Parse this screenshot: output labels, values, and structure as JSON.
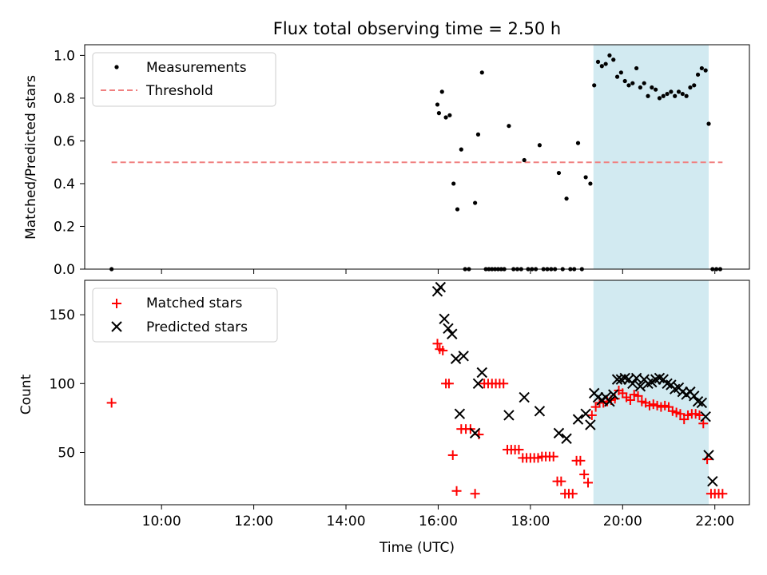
{
  "chart_data": [
    {
      "type": "scatter",
      "title": "Flux total observing time = 2.50 h",
      "xlabel": "",
      "ylabel": "Matched/Predicted stars",
      "ylim": [
        0.0,
        1.05
      ],
      "yticks": [
        "0.0",
        "0.2",
        "0.4",
        "0.6",
        "0.8",
        "1.0"
      ],
      "xlim": [
        "08:20",
        "22:45"
      ],
      "shaded_interval": [
        "19:22",
        "21:52"
      ],
      "shade_color": "#add8e6",
      "grid": false,
      "legend_position": "upper left",
      "threshold": {
        "name": "Threshold",
        "y": 0.5,
        "x_range": [
          "08:55",
          "22:10"
        ],
        "color": "#f08080",
        "style": "dashed"
      },
      "series": [
        {
          "name": "Measurements",
          "marker": "dot",
          "color": "#000000",
          "points": [
            [
              "08:55",
              0.0
            ],
            [
              "15:59",
              0.77
            ],
            [
              "16:01",
              0.73
            ],
            [
              "16:05",
              0.83
            ],
            [
              "16:10",
              0.71
            ],
            [
              "16:15",
              0.72
            ],
            [
              "16:20",
              0.4
            ],
            [
              "16:25",
              0.28
            ],
            [
              "16:30",
              0.56
            ],
            [
              "16:35",
              0.0
            ],
            [
              "16:40",
              0.0
            ],
            [
              "16:48",
              0.31
            ],
            [
              "16:52",
              0.63
            ],
            [
              "16:57",
              0.92
            ],
            [
              "17:02",
              0.0
            ],
            [
              "17:06",
              0.0
            ],
            [
              "17:10",
              0.0
            ],
            [
              "17:14",
              0.0
            ],
            [
              "17:18",
              0.0
            ],
            [
              "17:22",
              0.0
            ],
            [
              "17:26",
              0.0
            ],
            [
              "17:32",
              0.67
            ],
            [
              "17:38",
              0.0
            ],
            [
              "17:43",
              0.0
            ],
            [
              "17:48",
              0.0
            ],
            [
              "17:52",
              0.51
            ],
            [
              "17:57",
              0.0
            ],
            [
              "18:02",
              0.0
            ],
            [
              "18:07",
              0.0
            ],
            [
              "18:12",
              0.58
            ],
            [
              "18:17",
              0.0
            ],
            [
              "18:22",
              0.0
            ],
            [
              "18:27",
              0.0
            ],
            [
              "18:32",
              0.0
            ],
            [
              "18:37",
              0.45
            ],
            [
              "18:42",
              0.0
            ],
            [
              "18:47",
              0.33
            ],
            [
              "18:52",
              0.0
            ],
            [
              "18:57",
              0.0
            ],
            [
              "19:02",
              0.59
            ],
            [
              "19:07",
              0.0
            ],
            [
              "19:12",
              0.43
            ],
            [
              "19:18",
              0.4
            ],
            [
              "19:23",
              0.86
            ],
            [
              "19:28",
              0.97
            ],
            [
              "19:33",
              0.95
            ],
            [
              "19:38",
              0.96
            ],
            [
              "19:43",
              1.0
            ],
            [
              "19:48",
              0.98
            ],
            [
              "19:53",
              0.9
            ],
            [
              "19:58",
              0.92
            ],
            [
              "20:03",
              0.88
            ],
            [
              "20:08",
              0.86
            ],
            [
              "20:13",
              0.87
            ],
            [
              "20:18",
              0.94
            ],
            [
              "20:23",
              0.85
            ],
            [
              "20:28",
              0.87
            ],
            [
              "20:33",
              0.81
            ],
            [
              "20:38",
              0.85
            ],
            [
              "20:43",
              0.84
            ],
            [
              "20:48",
              0.8
            ],
            [
              "20:53",
              0.81
            ],
            [
              "20:58",
              0.82
            ],
            [
              "21:03",
              0.83
            ],
            [
              "21:08",
              0.81
            ],
            [
              "21:13",
              0.83
            ],
            [
              "21:18",
              0.82
            ],
            [
              "21:23",
              0.81
            ],
            [
              "21:28",
              0.85
            ],
            [
              "21:33",
              0.86
            ],
            [
              "21:38",
              0.91
            ],
            [
              "21:43",
              0.94
            ],
            [
              "21:48",
              0.93
            ],
            [
              "21:52",
              0.68
            ],
            [
              "21:57",
              0.0
            ],
            [
              "22:02",
              0.0
            ],
            [
              "22:07",
              0.0
            ]
          ]
        }
      ]
    },
    {
      "type": "scatter",
      "title": "",
      "xlabel": "Time (UTC)",
      "ylabel": "Count",
      "ylim": [
        12,
        175
      ],
      "yticks": [
        "50",
        "100",
        "150"
      ],
      "xlim": [
        "08:20",
        "22:45"
      ],
      "xticks": [
        "10:00",
        "12:00",
        "14:00",
        "16:00",
        "18:00",
        "20:00",
        "22:00"
      ],
      "shaded_interval": [
        "19:22",
        "21:52"
      ],
      "shade_color": "#add8e6",
      "grid": false,
      "legend_position": "upper left",
      "series": [
        {
          "name": "Matched stars",
          "marker": "plus",
          "color": "#ff0000",
          "points": [
            [
              "08:55",
              86
            ],
            [
              "15:59",
              129
            ],
            [
              "16:02",
              125
            ],
            [
              "16:06",
              124
            ],
            [
              "16:10",
              100
            ],
            [
              "16:14",
              100
            ],
            [
              "16:19",
              48
            ],
            [
              "16:24",
              22
            ],
            [
              "16:30",
              67
            ],
            [
              "16:36",
              67
            ],
            [
              "16:42",
              67
            ],
            [
              "16:48",
              20
            ],
            [
              "16:53",
              63
            ],
            [
              "17:00",
              100
            ],
            [
              "17:05",
              100
            ],
            [
              "17:10",
              100
            ],
            [
              "17:15",
              100
            ],
            [
              "17:20",
              100
            ],
            [
              "17:25",
              100
            ],
            [
              "17:30",
              52
            ],
            [
              "17:35",
              52
            ],
            [
              "17:40",
              52
            ],
            [
              "17:45",
              52
            ],
            [
              "17:50",
              46
            ],
            [
              "17:55",
              46
            ],
            [
              "18:00",
              46
            ],
            [
              "18:05",
              46
            ],
            [
              "18:10",
              46
            ],
            [
              "18:15",
              47
            ],
            [
              "18:20",
              47
            ],
            [
              "18:25",
              47
            ],
            [
              "18:30",
              47
            ],
            [
              "18:35",
              29
            ],
            [
              "18:40",
              29
            ],
            [
              "18:45",
              20
            ],
            [
              "18:50",
              20
            ],
            [
              "18:55",
              20
            ],
            [
              "19:00",
              44
            ],
            [
              "19:05",
              44
            ],
            [
              "19:10",
              34
            ],
            [
              "19:15",
              28
            ],
            [
              "19:20",
              77
            ],
            [
              "19:25",
              83
            ],
            [
              "19:30",
              86
            ],
            [
              "19:35",
              86
            ],
            [
              "19:40",
              87
            ],
            [
              "19:45",
              88
            ],
            [
              "19:50",
              89
            ],
            [
              "19:55",
              95
            ],
            [
              "20:00",
              93
            ],
            [
              "20:05",
              90
            ],
            [
              "20:10",
              88
            ],
            [
              "20:15",
              92
            ],
            [
              "20:20",
              91
            ],
            [
              "20:25",
              87
            ],
            [
              "20:30",
              86
            ],
            [
              "20:35",
              84
            ],
            [
              "20:40",
              85
            ],
            [
              "20:45",
              84
            ],
            [
              "20:50",
              83
            ],
            [
              "20:55",
              84
            ],
            [
              "21:00",
              83
            ],
            [
              "21:05",
              80
            ],
            [
              "21:10",
              79
            ],
            [
              "21:15",
              78
            ],
            [
              "21:20",
              74
            ],
            [
              "21:25",
              77
            ],
            [
              "21:30",
              78
            ],
            [
              "21:35",
              78
            ],
            [
              "21:40",
              77
            ],
            [
              "21:45",
              71
            ],
            [
              "21:50",
              45
            ],
            [
              "21:55",
              20
            ],
            [
              "22:00",
              20
            ],
            [
              "22:05",
              20
            ],
            [
              "22:10",
              20
            ]
          ]
        },
        {
          "name": "Predicted stars",
          "marker": "x",
          "color": "#000000",
          "points": [
            [
              "15:59",
              167
            ],
            [
              "16:03",
              170
            ],
            [
              "16:08",
              147
            ],
            [
              "16:13",
              140
            ],
            [
              "16:18",
              136
            ],
            [
              "16:23",
              118
            ],
            [
              "16:28",
              78
            ],
            [
              "16:33",
              120
            ],
            [
              "16:48",
              64
            ],
            [
              "16:52",
              100
            ],
            [
              "16:57",
              108
            ],
            [
              "17:32",
              77
            ],
            [
              "17:52",
              90
            ],
            [
              "18:12",
              80
            ],
            [
              "18:37",
              64
            ],
            [
              "18:47",
              60
            ],
            [
              "19:02",
              74
            ],
            [
              "19:12",
              78
            ],
            [
              "19:18",
              70
            ],
            [
              "19:23",
              93
            ],
            [
              "19:28",
              90
            ],
            [
              "19:33",
              88
            ],
            [
              "19:38",
              90
            ],
            [
              "19:43",
              87
            ],
            [
              "19:48",
              92
            ],
            [
              "19:53",
              103
            ],
            [
              "19:58",
              103
            ],
            [
              "20:03",
              104
            ],
            [
              "20:08",
              103
            ],
            [
              "20:13",
              100
            ],
            [
              "20:18",
              104
            ],
            [
              "20:23",
              98
            ],
            [
              "20:28",
              103
            ],
            [
              "20:33",
              100
            ],
            [
              "20:38",
              101
            ],
            [
              "20:43",
              103
            ],
            [
              "20:48",
              104
            ],
            [
              "20:53",
              103
            ],
            [
              "20:58",
              100
            ],
            [
              "21:03",
              99
            ],
            [
              "21:08",
              96
            ],
            [
              "21:13",
              97
            ],
            [
              "21:18",
              94
            ],
            [
              "21:23",
              92
            ],
            [
              "21:28",
              94
            ],
            [
              "21:33",
              91
            ],
            [
              "21:38",
              87
            ],
            [
              "21:43",
              86
            ],
            [
              "21:48",
              76
            ],
            [
              "21:52",
              48
            ],
            [
              "21:57",
              29
            ]
          ]
        }
      ]
    }
  ]
}
